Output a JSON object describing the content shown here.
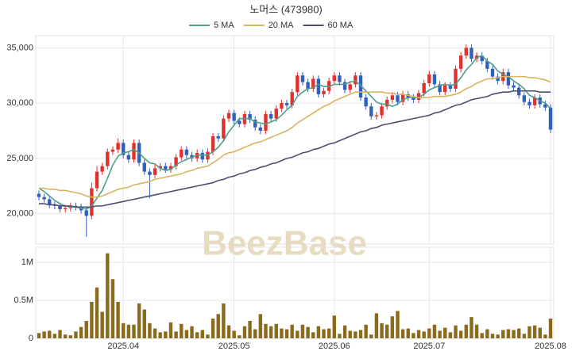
{
  "chart_data": {
    "type": "candlestick",
    "title": "노머스 (473980)",
    "watermark": "BeezBase",
    "up_color": "#e0312f",
    "down_color": "#2f5fbf",
    "volume_color": "#8a6a1c",
    "grid": true,
    "xlim": [
      -0.6,
      97.6
    ],
    "xticks": [
      {
        "value": 16,
        "label": "2025.04"
      },
      {
        "value": 37,
        "label": "2025.05"
      },
      {
        "value": 56,
        "label": "2025.06"
      },
      {
        "value": 74,
        "label": "2025.07"
      },
      {
        "value": 97,
        "label": "2025.08"
      }
    ],
    "ylim": [
      17250,
      36100
    ],
    "yticks": [
      {
        "value": 20000,
        "label": "20,000"
      },
      {
        "value": 25000,
        "label": "25,000"
      },
      {
        "value": 30000,
        "label": "30,000"
      },
      {
        "value": 35000,
        "label": "35,000"
      }
    ],
    "volume_ylim": [
      0,
      1200000
    ],
    "volume_yticks": [
      0,
      {
        "value": 500000,
        "label": "0.5M"
      },
      {
        "value": 1000000,
        "label": "1M"
      }
    ],
    "open": [
      21800,
      21500,
      21300,
      20800,
      20700,
      20400,
      20500,
      20700,
      20600,
      20300,
      19800,
      22300,
      23800,
      24300,
      25600,
      25800,
      26400,
      25300,
      24900,
      26400,
      24600,
      23800,
      23500,
      24100,
      24300,
      24000,
      24300,
      25100,
      25800,
      25300,
      25000,
      25500,
      24900,
      25600,
      27000,
      26800,
      28600,
      29100,
      28400,
      28100,
      29000,
      28500,
      27800,
      27500,
      29000,
      28600,
      29500,
      30000,
      29800,
      31000,
      32500,
      31900,
      31300,
      32200,
      30800,
      31100,
      32000,
      32500,
      31900,
      31200,
      31700,
      32500,
      30500,
      29700,
      28800,
      28900,
      29700,
      30300,
      30700,
      30100,
      30800,
      30500,
      30300,
      30900,
      31800,
      32600,
      31700,
      31000,
      31600,
      31300,
      33100,
      34300,
      35000,
      34000,
      34300,
      33800,
      33100,
      32400,
      32000,
      32800,
      31600,
      31400,
      30700,
      30100,
      29800,
      30500,
      29900,
      29600
    ],
    "high": [
      22100,
      21800,
      21600,
      21100,
      21000,
      20800,
      21000,
      21000,
      20900,
      20600,
      22800,
      24300,
      24600,
      25900,
      26100,
      26800,
      26700,
      25600,
      26700,
      26700,
      24900,
      24100,
      24400,
      24600,
      24600,
      24600,
      25400,
      26100,
      26100,
      25600,
      25800,
      25800,
      25900,
      27300,
      27300,
      28900,
      29400,
      29400,
      28700,
      29300,
      29300,
      28800,
      28100,
      29300,
      29300,
      29800,
      30300,
      30300,
      31300,
      32800,
      32800,
      32200,
      32500,
      32500,
      31400,
      32300,
      32800,
      32800,
      32200,
      32000,
      32800,
      32800,
      30800,
      30000,
      29200,
      30000,
      30600,
      31000,
      31000,
      31100,
      31100,
      30800,
      31200,
      32100,
      32900,
      32900,
      32000,
      31900,
      31900,
      33400,
      34600,
      35300,
      35300,
      34600,
      34600,
      34100,
      33400,
      32700,
      33100,
      33100,
      31900,
      31700,
      31000,
      30400,
      30800,
      30800,
      30200,
      29900
    ],
    "low": [
      21200,
      21000,
      20500,
      20400,
      20100,
      20100,
      20200,
      20300,
      20000,
      17900,
      19500,
      22000,
      23500,
      24000,
      25300,
      25500,
      25000,
      24600,
      24600,
      24300,
      23500,
      21400,
      23200,
      23800,
      23700,
      23700,
      24000,
      24800,
      25000,
      24700,
      24700,
      24600,
      24600,
      25300,
      26500,
      26500,
      28300,
      28100,
      27800,
      27800,
      28200,
      27500,
      27200,
      27200,
      28300,
      28300,
      29200,
      29500,
      29500,
      30700,
      31600,
      31000,
      31000,
      30500,
      30500,
      30800,
      31700,
      31600,
      30900,
      30900,
      31400,
      30200,
      29400,
      28500,
      28500,
      28600,
      29400,
      30000,
      29800,
      29800,
      30200,
      30000,
      30000,
      30600,
      31500,
      31400,
      30700,
      30700,
      31000,
      31000,
      32800,
      34000,
      33700,
      33700,
      33500,
      32800,
      32100,
      31700,
      31700,
      31300,
      31100,
      30400,
      29800,
      29500,
      29500,
      29600,
      29300,
      27300
    ],
    "close": [
      21500,
      21300,
      20800,
      20700,
      20400,
      20500,
      20700,
      20600,
      20300,
      19800,
      22300,
      23800,
      24300,
      25600,
      25800,
      26400,
      25300,
      24900,
      26400,
      24600,
      23800,
      23500,
      24100,
      24300,
      24000,
      24300,
      25100,
      25800,
      25300,
      25000,
      25500,
      24900,
      25600,
      27000,
      26800,
      28600,
      29100,
      28400,
      28100,
      29000,
      28500,
      27800,
      27500,
      29000,
      28600,
      29500,
      30000,
      29800,
      31000,
      32500,
      31900,
      31300,
      32200,
      30800,
      31100,
      32000,
      32500,
      31900,
      31200,
      31700,
      32500,
      30500,
      29700,
      28800,
      28900,
      29700,
      30300,
      30700,
      30100,
      30800,
      30500,
      30300,
      30900,
      31800,
      32600,
      31700,
      31000,
      31600,
      31300,
      33100,
      34300,
      35000,
      34000,
      34300,
      33800,
      33100,
      32400,
      32000,
      32800,
      31600,
      31400,
      30700,
      30100,
      29800,
      30500,
      29900,
      29600,
      27600
    ],
    "volume": [
      70000,
      90000,
      100000,
      60000,
      110000,
      50000,
      40000,
      90000,
      150000,
      230000,
      480000,
      670000,
      350000,
      1120000,
      780000,
      480000,
      200000,
      180000,
      180000,
      460000,
      380000,
      200000,
      130000,
      80000,
      90000,
      210000,
      90000,
      190000,
      110000,
      160000,
      80000,
      110000,
      50000,
      260000,
      320000,
      460000,
      170000,
      100000,
      40000,
      160000,
      230000,
      120000,
      320000,
      190000,
      160000,
      190000,
      130000,
      120000,
      180000,
      100000,
      180000,
      150000,
      80000,
      160000,
      120000,
      130000,
      300000,
      60000,
      170000,
      100000,
      90000,
      110000,
      180000,
      50000,
      330000,
      200000,
      180000,
      290000,
      360000,
      120000,
      130000,
      70000,
      110000,
      90000,
      130000,
      180000,
      100000,
      140000,
      80000,
      170000,
      100000,
      180000,
      280000,
      180000,
      70000,
      120000,
      60000,
      50000,
      110000,
      120000,
      110000,
      130000,
      60000,
      160000,
      170000,
      140000,
      50000,
      260000
    ],
    "series": [
      {
        "name": "5 MA",
        "color": "#4f9e8c",
        "values": [
          22300,
          22000,
          21600,
          21200,
          20900,
          20700,
          20600,
          20600,
          20500,
          20400,
          20700,
          21400,
          22100,
          23200,
          24400,
          25200,
          25500,
          25600,
          25800,
          25500,
          25000,
          24600,
          24500,
          24100,
          23900,
          24000,
          24400,
          24700,
          24900,
          25100,
          25300,
          25300,
          25300,
          25600,
          26000,
          26600,
          27400,
          28000,
          28600,
          28600,
          28600,
          28300,
          28200,
          28100,
          28300,
          28500,
          28900,
          29400,
          29800,
          30600,
          31000,
          31300,
          31400,
          31700,
          31500,
          31500,
          31700,
          31700,
          31700,
          31900,
          32000,
          31600,
          31100,
          30600,
          30100,
          29900,
          29900,
          29700,
          29900,
          30300,
          30500,
          30500,
          30500,
          30800,
          31200,
          31400,
          31600,
          31700,
          31600,
          31700,
          32300,
          33000,
          33500,
          34100,
          34300,
          33800,
          33500,
          32900,
          32600,
          32400,
          32000,
          31700,
          31300,
          30700,
          30500,
          30200,
          30000,
          29500
        ]
      },
      {
        "name": "20 MA",
        "color": "#d8b45e",
        "values": [
          22300,
          22300,
          22200,
          22200,
          22100,
          22100,
          22000,
          21900,
          21800,
          21600,
          21500,
          21500,
          21600,
          21800,
          22000,
          22200,
          22300,
          22400,
          22600,
          22700,
          22800,
          22900,
          23100,
          23200,
          23300,
          23400,
          23500,
          23600,
          23800,
          23900,
          24100,
          24200,
          24300,
          24600,
          24900,
          25300,
          25500,
          25600,
          25800,
          26000,
          26200,
          26400,
          26500,
          26700,
          26900,
          27100,
          27300,
          27500,
          27800,
          28200,
          28500,
          28800,
          29100,
          29400,
          29700,
          29900,
          30200,
          30400,
          30600,
          30800,
          31000,
          31000,
          31000,
          31000,
          31000,
          31000,
          30900,
          30900,
          30800,
          30800,
          30700,
          30600,
          30500,
          30500,
          30500,
          30600,
          30600,
          30600,
          30700,
          30800,
          31000,
          31300,
          31500,
          31800,
          32000,
          32200,
          32200,
          32300,
          32400,
          32400,
          32400,
          32400,
          32400,
          32300,
          32300,
          32200,
          32100,
          31900
        ]
      },
      {
        "name": "60 MA",
        "color": "#4b4f70",
        "values": [
          20900,
          20900,
          20800,
          20800,
          20700,
          20700,
          20700,
          20600,
          20600,
          20600,
          20600,
          20700,
          20700,
          20800,
          20900,
          21000,
          21100,
          21200,
          21300,
          21400,
          21500,
          21600,
          21700,
          21800,
          21900,
          22000,
          22100,
          22200,
          22300,
          22400,
          22500,
          22600,
          22700,
          22800,
          23000,
          23100,
          23300,
          23400,
          23600,
          23700,
          23900,
          24000,
          24200,
          24300,
          24500,
          24600,
          24800,
          25000,
          25100,
          25300,
          25500,
          25600,
          25800,
          25900,
          26100,
          26300,
          26400,
          26600,
          26800,
          27000,
          27200,
          27400,
          27500,
          27700,
          27800,
          28000,
          28100,
          28200,
          28300,
          28400,
          28500,
          28600,
          28700,
          28800,
          28900,
          29100,
          29200,
          29400,
          29600,
          29800,
          29900,
          30100,
          30300,
          30400,
          30500,
          30600,
          30800,
          30900,
          31000,
          31000,
          31100,
          31100,
          31100,
          31100,
          31100,
          31000,
          31000,
          31000
        ]
      }
    ]
  }
}
